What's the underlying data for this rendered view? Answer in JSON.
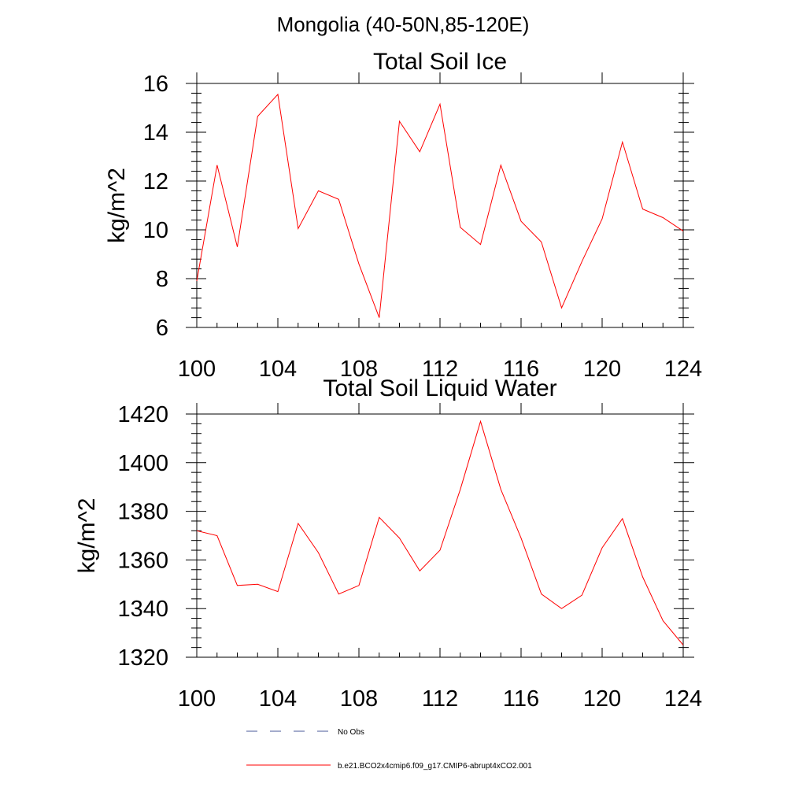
{
  "page": {
    "title": "Mongolia (40-50N,85-120E)"
  },
  "legend": [
    {
      "label": "No Obs",
      "style": "dashed",
      "color": "#4a5a9a"
    },
    {
      "label": "b.e21.BCO2x4cmip6.f09_g17.CMIP6-abrupt4xCO2.001",
      "style": "solid",
      "color": "#ff0000"
    }
  ],
  "chart_data": [
    {
      "type": "line",
      "title": "Total Soil Ice",
      "xlabel": "",
      "ylabel": "kg/m^2",
      "xlim": [
        100,
        124
      ],
      "ylim": [
        6,
        16
      ],
      "xticks": [
        100,
        104,
        108,
        112,
        116,
        120,
        124
      ],
      "yticks": [
        6,
        8,
        10,
        12,
        14,
        16
      ],
      "grid": false,
      "series": [
        {
          "color": "#ff0000",
          "x": [
            100,
            101,
            102,
            103,
            104,
            105,
            106,
            107,
            108,
            109,
            110,
            111,
            112,
            113,
            114,
            115,
            116,
            117,
            118,
            119,
            120,
            121,
            122,
            123,
            124
          ],
          "values": [
            7.9,
            12.65,
            9.3,
            14.65,
            15.55,
            10.05,
            11.6,
            11.25,
            8.6,
            6.4,
            14.45,
            13.2,
            15.15,
            10.1,
            9.4,
            12.65,
            10.35,
            9.5,
            6.8,
            8.7,
            10.45,
            13.6,
            10.85,
            10.5,
            9.95
          ]
        }
      ]
    },
    {
      "type": "line",
      "title": "Total Soil Liquid Water",
      "xlabel": "",
      "ylabel": "kg/m^2",
      "xlim": [
        100,
        124
      ],
      "ylim": [
        1320,
        1420
      ],
      "xticks": [
        100,
        104,
        108,
        112,
        116,
        120,
        124
      ],
      "yticks": [
        1320,
        1340,
        1360,
        1380,
        1400,
        1420
      ],
      "grid": false,
      "series": [
        {
          "color": "#ff0000",
          "x": [
            100,
            101,
            102,
            103,
            104,
            105,
            106,
            107,
            108,
            109,
            110,
            111,
            112,
            113,
            114,
            115,
            116,
            117,
            118,
            119,
            120,
            121,
            122,
            123,
            124
          ],
          "values": [
            1372,
            1370,
            1349.5,
            1350,
            1347,
            1375,
            1363,
            1346,
            1349.5,
            1377.5,
            1369,
            1355.5,
            1364,
            1389,
            1417,
            1389,
            1369,
            1346,
            1340,
            1345.5,
            1365,
            1377,
            1353,
            1335,
            1325
          ]
        }
      ]
    }
  ]
}
